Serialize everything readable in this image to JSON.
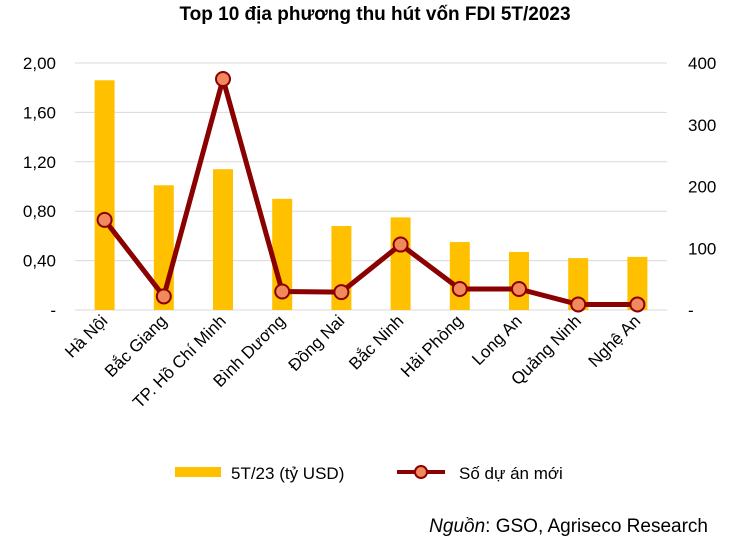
{
  "chart_data": {
    "type": "bar",
    "title": "Top 10 địa phương thu hút vốn FDI 5T/2023",
    "categories": [
      "Hà Nội",
      "Bắc Giang",
      "TP. Hồ Chí Minh",
      "Bình Dương",
      "Đồng Nai",
      "Bắc Ninh",
      "Hải Phòng",
      "Long An",
      "Quảng Ninh",
      "Nghệ An"
    ],
    "series": [
      {
        "name": "5T/23 (tỷ USD)",
        "type": "bar",
        "axis": "left",
        "color": "#FFC000",
        "values": [
          1.86,
          1.01,
          1.14,
          0.9,
          0.68,
          0.75,
          0.55,
          0.47,
          0.42,
          0.43
        ]
      },
      {
        "name": "Số dự án mới",
        "type": "line",
        "axis": "right",
        "color": "#8B0000",
        "marker_fill": "#F08A5D",
        "values": [
          146,
          22,
          374,
          30,
          29,
          106,
          34,
          34,
          9,
          9
        ]
      }
    ],
    "y_left": {
      "min": 0,
      "max": 2.0,
      "ticks": [
        "-",
        "0,40",
        "0,80",
        "1,20",
        "1,60",
        "2,00"
      ]
    },
    "y_right": {
      "min": 0,
      "max": 400,
      "ticks": [
        "-",
        "100",
        "200",
        "300",
        "400"
      ]
    },
    "grid": true,
    "legend_position": "bottom"
  },
  "source": {
    "label": "Nguồn",
    "text": ": GSO, Agriseco Research"
  }
}
